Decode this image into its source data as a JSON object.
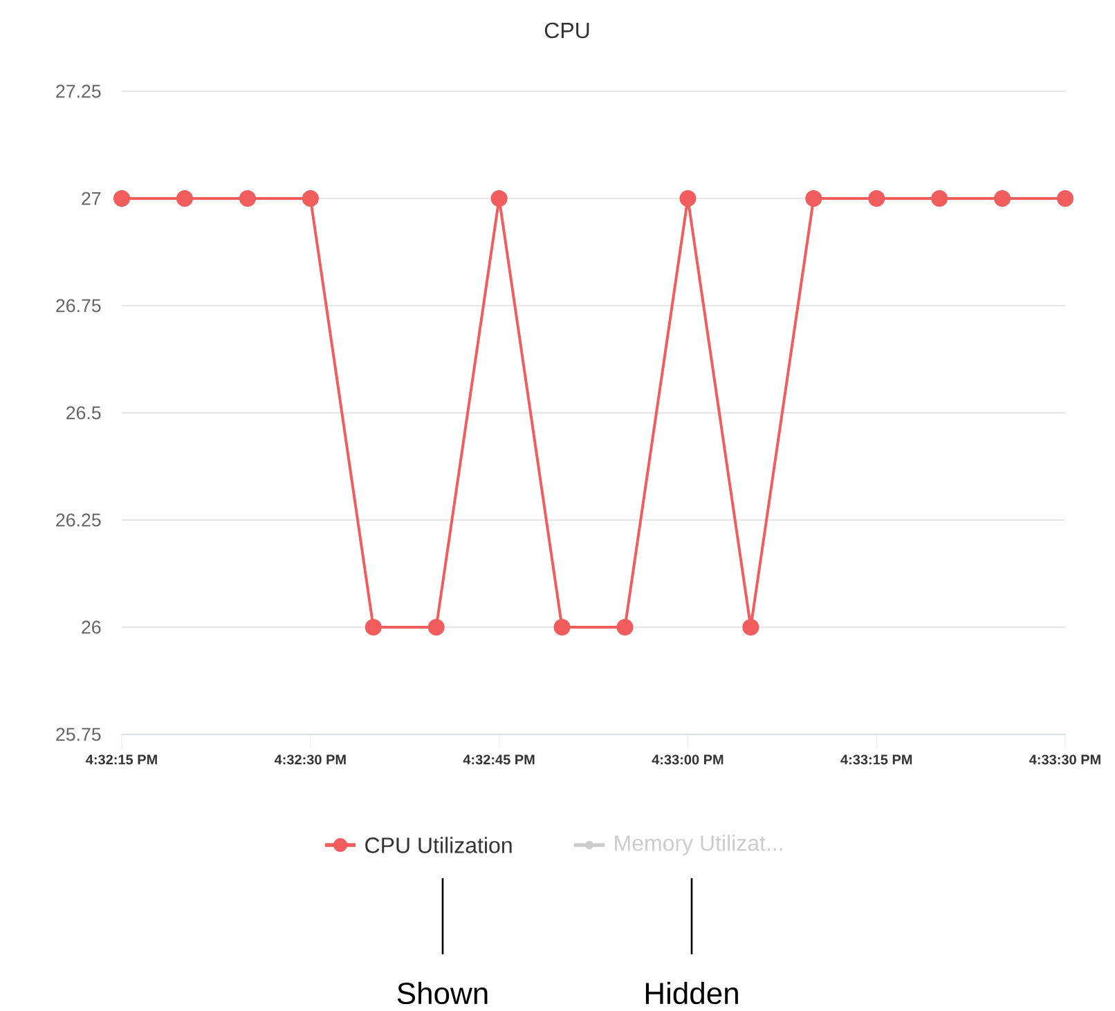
{
  "chart_data": {
    "type": "line",
    "title": "CPU",
    "x": [
      16.5375,
      16.538889,
      16.540278,
      16.541667,
      16.543056,
      16.544444,
      16.545833,
      16.547222,
      16.548611,
      16.55,
      16.551389,
      16.552778,
      16.554167,
      16.555556,
      16.556944,
      16.558333
    ],
    "series": [
      {
        "name": "CPU Utilization",
        "color": "#f15c5c",
        "values": [
          27,
          27,
          27,
          27,
          26,
          26,
          27,
          26,
          26,
          27,
          26,
          27,
          27,
          27,
          27,
          27
        ]
      },
      {
        "name": "Memory Utilizat...",
        "color": "#cccccc",
        "values": [
          null,
          null,
          null,
          null,
          null,
          null,
          null,
          null,
          null,
          null,
          null,
          null,
          null,
          null,
          null,
          null
        ]
      }
    ],
    "xlim": [
      16.5375,
      16.558333
    ],
    "xticks": [
      {
        "value": 16.5375,
        "label": "4:32:15 PM"
      },
      {
        "value": 16.541667,
        "label": "4:32:30 PM"
      },
      {
        "value": 16.545833,
        "label": "4:32:45 PM"
      },
      {
        "value": 16.55,
        "label": "4:33:00 PM"
      },
      {
        "value": 16.554167,
        "label": "4:33:15 PM"
      },
      {
        "value": 16.558333,
        "label": "4:33:30 PM"
      }
    ],
    "ylim": [
      25.75,
      27.25
    ],
    "yticks": [
      25.75,
      26,
      26.25,
      26.5,
      26.75,
      27,
      27.25
    ],
    "grid": "y",
    "legend": "bottom",
    "marker": "circle",
    "line_style": "solid",
    "annotations": [
      "Shown",
      "Hidden"
    ]
  }
}
